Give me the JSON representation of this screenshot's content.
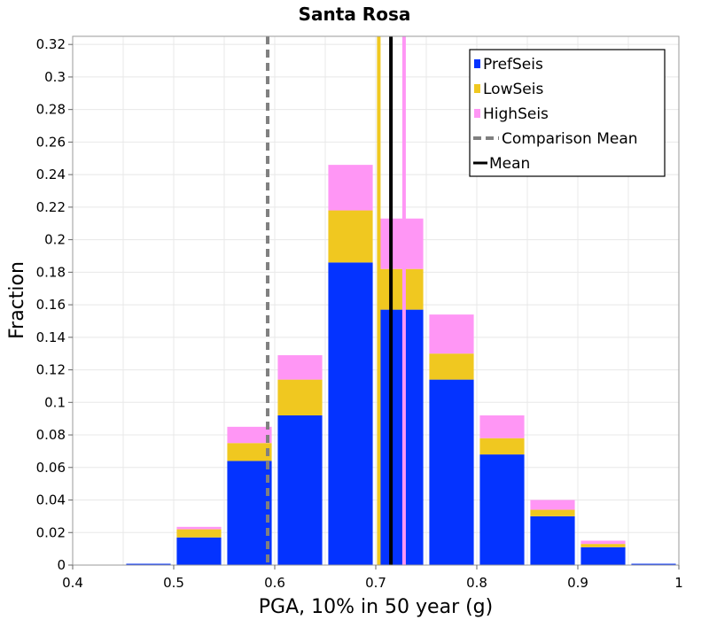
{
  "chart_data": {
    "type": "bar",
    "stacked": true,
    "title": "Santa Rosa",
    "xlabel": "PGA, 10% in 50 year (g)",
    "ylabel": "Fraction",
    "xlim": [
      0.4,
      1.0
    ],
    "ylim": [
      0,
      0.325
    ],
    "bin_width": 0.05,
    "x_ticks": [
      0.4,
      0.5,
      0.6,
      0.7,
      0.8,
      0.9,
      1.0
    ],
    "x_tick_labels": [
      "0.4",
      "0.5",
      "0.6",
      "0.7",
      "0.8",
      "0.9",
      "1"
    ],
    "y_ticks": [
      0,
      0.02,
      0.04,
      0.06,
      0.08,
      0.1,
      0.12,
      0.14,
      0.16,
      0.18,
      0.2,
      0.22,
      0.24,
      0.26,
      0.28,
      0.3,
      0.32
    ],
    "y_tick_labels": [
      "0",
      "0.02",
      "0.04",
      "0.06",
      "0.08",
      "0.1",
      "0.12",
      "0.14",
      "0.16",
      "0.18",
      "0.2",
      "0.22",
      "0.24",
      "0.26",
      "0.28",
      "0.3",
      "0.32"
    ],
    "bin_centers": [
      0.425,
      0.475,
      0.525,
      0.575,
      0.625,
      0.675,
      0.725,
      0.775,
      0.825,
      0.875,
      0.925,
      0.975
    ],
    "series": [
      {
        "name": "PrefSeis",
        "color": "#0433ff",
        "values": [
          0.0,
          0.0007,
          0.017,
          0.064,
          0.092,
          0.186,
          0.157,
          0.114,
          0.068,
          0.03,
          0.011,
          0.0008
        ]
      },
      {
        "name": "LowSeis",
        "color": "#f0c820",
        "values": [
          0.0,
          0.0,
          0.005,
          0.011,
          0.022,
          0.032,
          0.025,
          0.016,
          0.01,
          0.004,
          0.002,
          0.0
        ]
      },
      {
        "name": "HighSeis",
        "color": "#ff96f5",
        "values": [
          0.0,
          0.0,
          0.0015,
          0.01,
          0.015,
          0.028,
          0.031,
          0.024,
          0.014,
          0.006,
          0.002,
          0.0
        ]
      }
    ],
    "vertical_lines": [
      {
        "name": "Comparison Mean",
        "x": 0.593,
        "color": "#808080",
        "style": "dashed"
      },
      {
        "name": "LowSeis Mean",
        "x": 0.703,
        "color": "#f0c820",
        "style": "solid"
      },
      {
        "name": "HighSeis Mean",
        "x": 0.728,
        "color": "#ff96f5",
        "style": "solid"
      },
      {
        "name": "Mean",
        "x": 0.715,
        "color": "#000000",
        "style": "solid"
      }
    ],
    "legend": {
      "position": "top-right",
      "items": [
        {
          "label": "PrefSeis",
          "kind": "swatch",
          "color": "#0433ff"
        },
        {
          "label": "LowSeis",
          "kind": "swatch",
          "color": "#f0c820"
        },
        {
          "label": "HighSeis",
          "kind": "swatch",
          "color": "#ff96f5"
        },
        {
          "label": "Comparison Mean",
          "kind": "dashed-line",
          "color": "#808080"
        },
        {
          "label": "Mean",
          "kind": "solid-line",
          "color": "#000000"
        }
      ]
    },
    "grid": true
  }
}
